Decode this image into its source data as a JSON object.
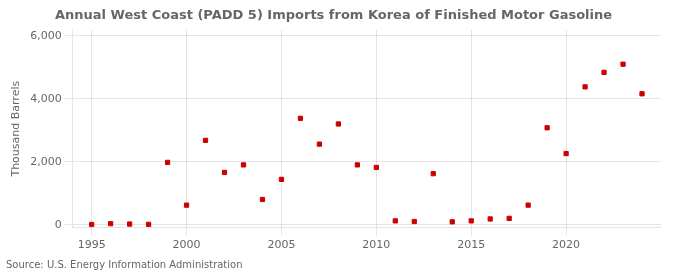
{
  "chart_data": {
    "type": "scatter",
    "title": "Annual West Coast (PADD 5) Imports from Korea of Finished Motor Gasoline",
    "y_label": "Thousand Barrels",
    "source": "Source: U.S. Energy Information Administration",
    "x": [
      1995,
      1996,
      1997,
      1998,
      1999,
      2000,
      2001,
      2002,
      2003,
      2004,
      2005,
      2006,
      2007,
      2008,
      2009,
      2010,
      2011,
      2012,
      2013,
      2014,
      2015,
      2016,
      2017,
      2018,
      2019,
      2020,
      2021,
      2022,
      2023,
      2024
    ],
    "values": [
      5,
      30,
      20,
      10,
      1980,
      620,
      2680,
      1660,
      1900,
      800,
      1440,
      3380,
      2560,
      3200,
      1900,
      1820,
      120,
      100,
      1620,
      90,
      120,
      180,
      200,
      620,
      3080,
      2260,
      4380,
      4840,
      5100,
      4160
    ],
    "color": "#cc0000",
    "marker": "square",
    "xlim": [
      1994.0,
      2025.0
    ],
    "xticks": [
      1995,
      2000,
      2005,
      2010,
      2015,
      2020
    ],
    "ylim": [
      -100,
      6200
    ],
    "yticks": [
      0,
      {
        "value": 2000,
        "label": "2,000"
      },
      {
        "value": 4000,
        "label": "4,000"
      },
      {
        "value": 6000,
        "label": "6,000"
      }
    ],
    "grid": true
  }
}
